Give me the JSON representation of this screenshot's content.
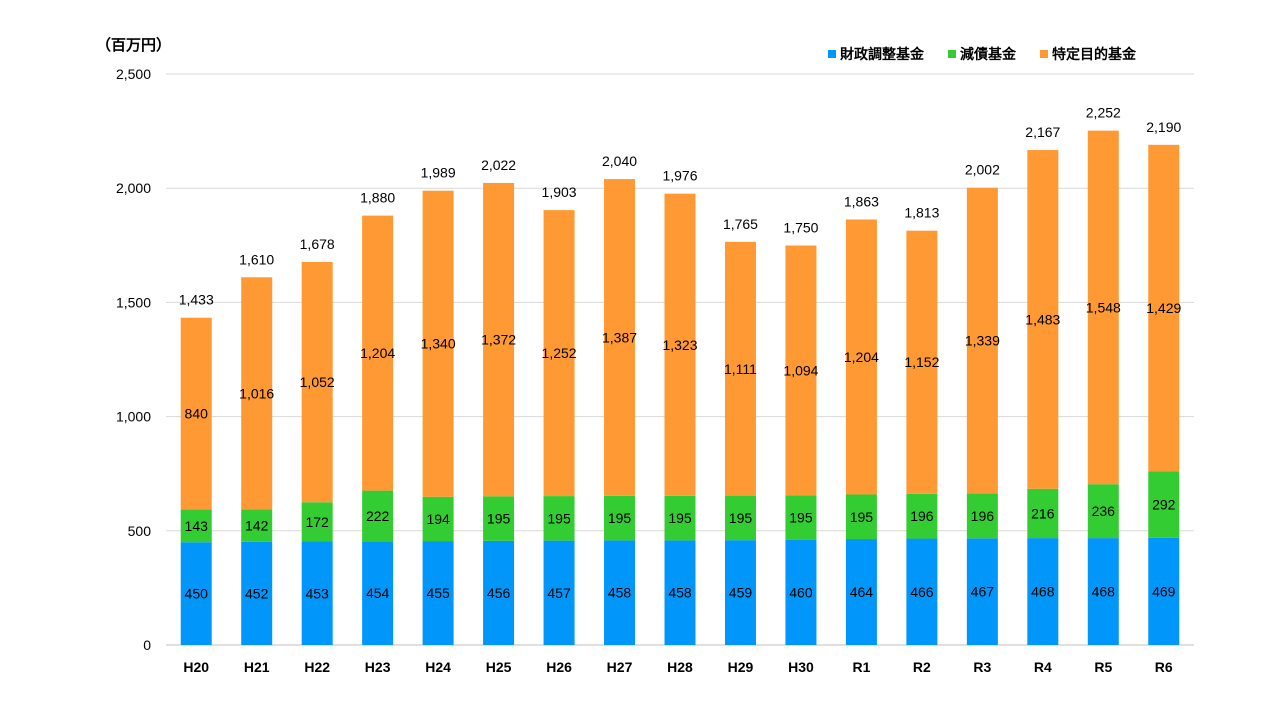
{
  "unit_label": "（百万円）",
  "colors": {
    "fiscal": "#0096FA",
    "debt": "#33CC33",
    "specific": "#FF9933"
  },
  "chart_data": {
    "type": "bar",
    "stacked": true,
    "categories": [
      "H20",
      "H21",
      "H22",
      "H23",
      "H24",
      "H25",
      "H26",
      "H27",
      "H28",
      "H29",
      "H30",
      "R1",
      "R2",
      "R3",
      "R4",
      "R5",
      "R6"
    ],
    "series": [
      {
        "name": "財政調整基金",
        "color": "#0096FA",
        "values": [
          450,
          452,
          453,
          454,
          455,
          456,
          457,
          458,
          458,
          459,
          460,
          464,
          466,
          467,
          468,
          468,
          469
        ]
      },
      {
        "name": "減債基金",
        "color": "#33CC33",
        "values": [
          143,
          142,
          172,
          222,
          194,
          195,
          195,
          195,
          195,
          195,
          195,
          195,
          196,
          196,
          216,
          236,
          292
        ]
      },
      {
        "name": "特定目的基金",
        "color": "#FF9933",
        "values": [
          840,
          1016,
          1052,
          1204,
          1340,
          1372,
          1252,
          1387,
          1323,
          1111,
          1094,
          1204,
          1152,
          1339,
          1483,
          1548,
          1429
        ]
      }
    ],
    "totals": [
      "1,433",
      "1,610",
      "1,678",
      "1,880",
      "1,989",
      "2,022",
      "1,903",
      "2,040",
      "1,976",
      "1,765",
      "1,750",
      "1,863",
      "1,813",
      "2,002",
      "2,167",
      "2,252",
      "2,190"
    ],
    "ylim": [
      0,
      2500
    ],
    "yticks": [
      "0",
      "500",
      "1,000",
      "1,500",
      "2,000",
      "2,500"
    ],
    "ytick_values": [
      0,
      500,
      1000,
      1500,
      2000,
      2500
    ],
    "grid": true,
    "legend_position": "top-right"
  }
}
